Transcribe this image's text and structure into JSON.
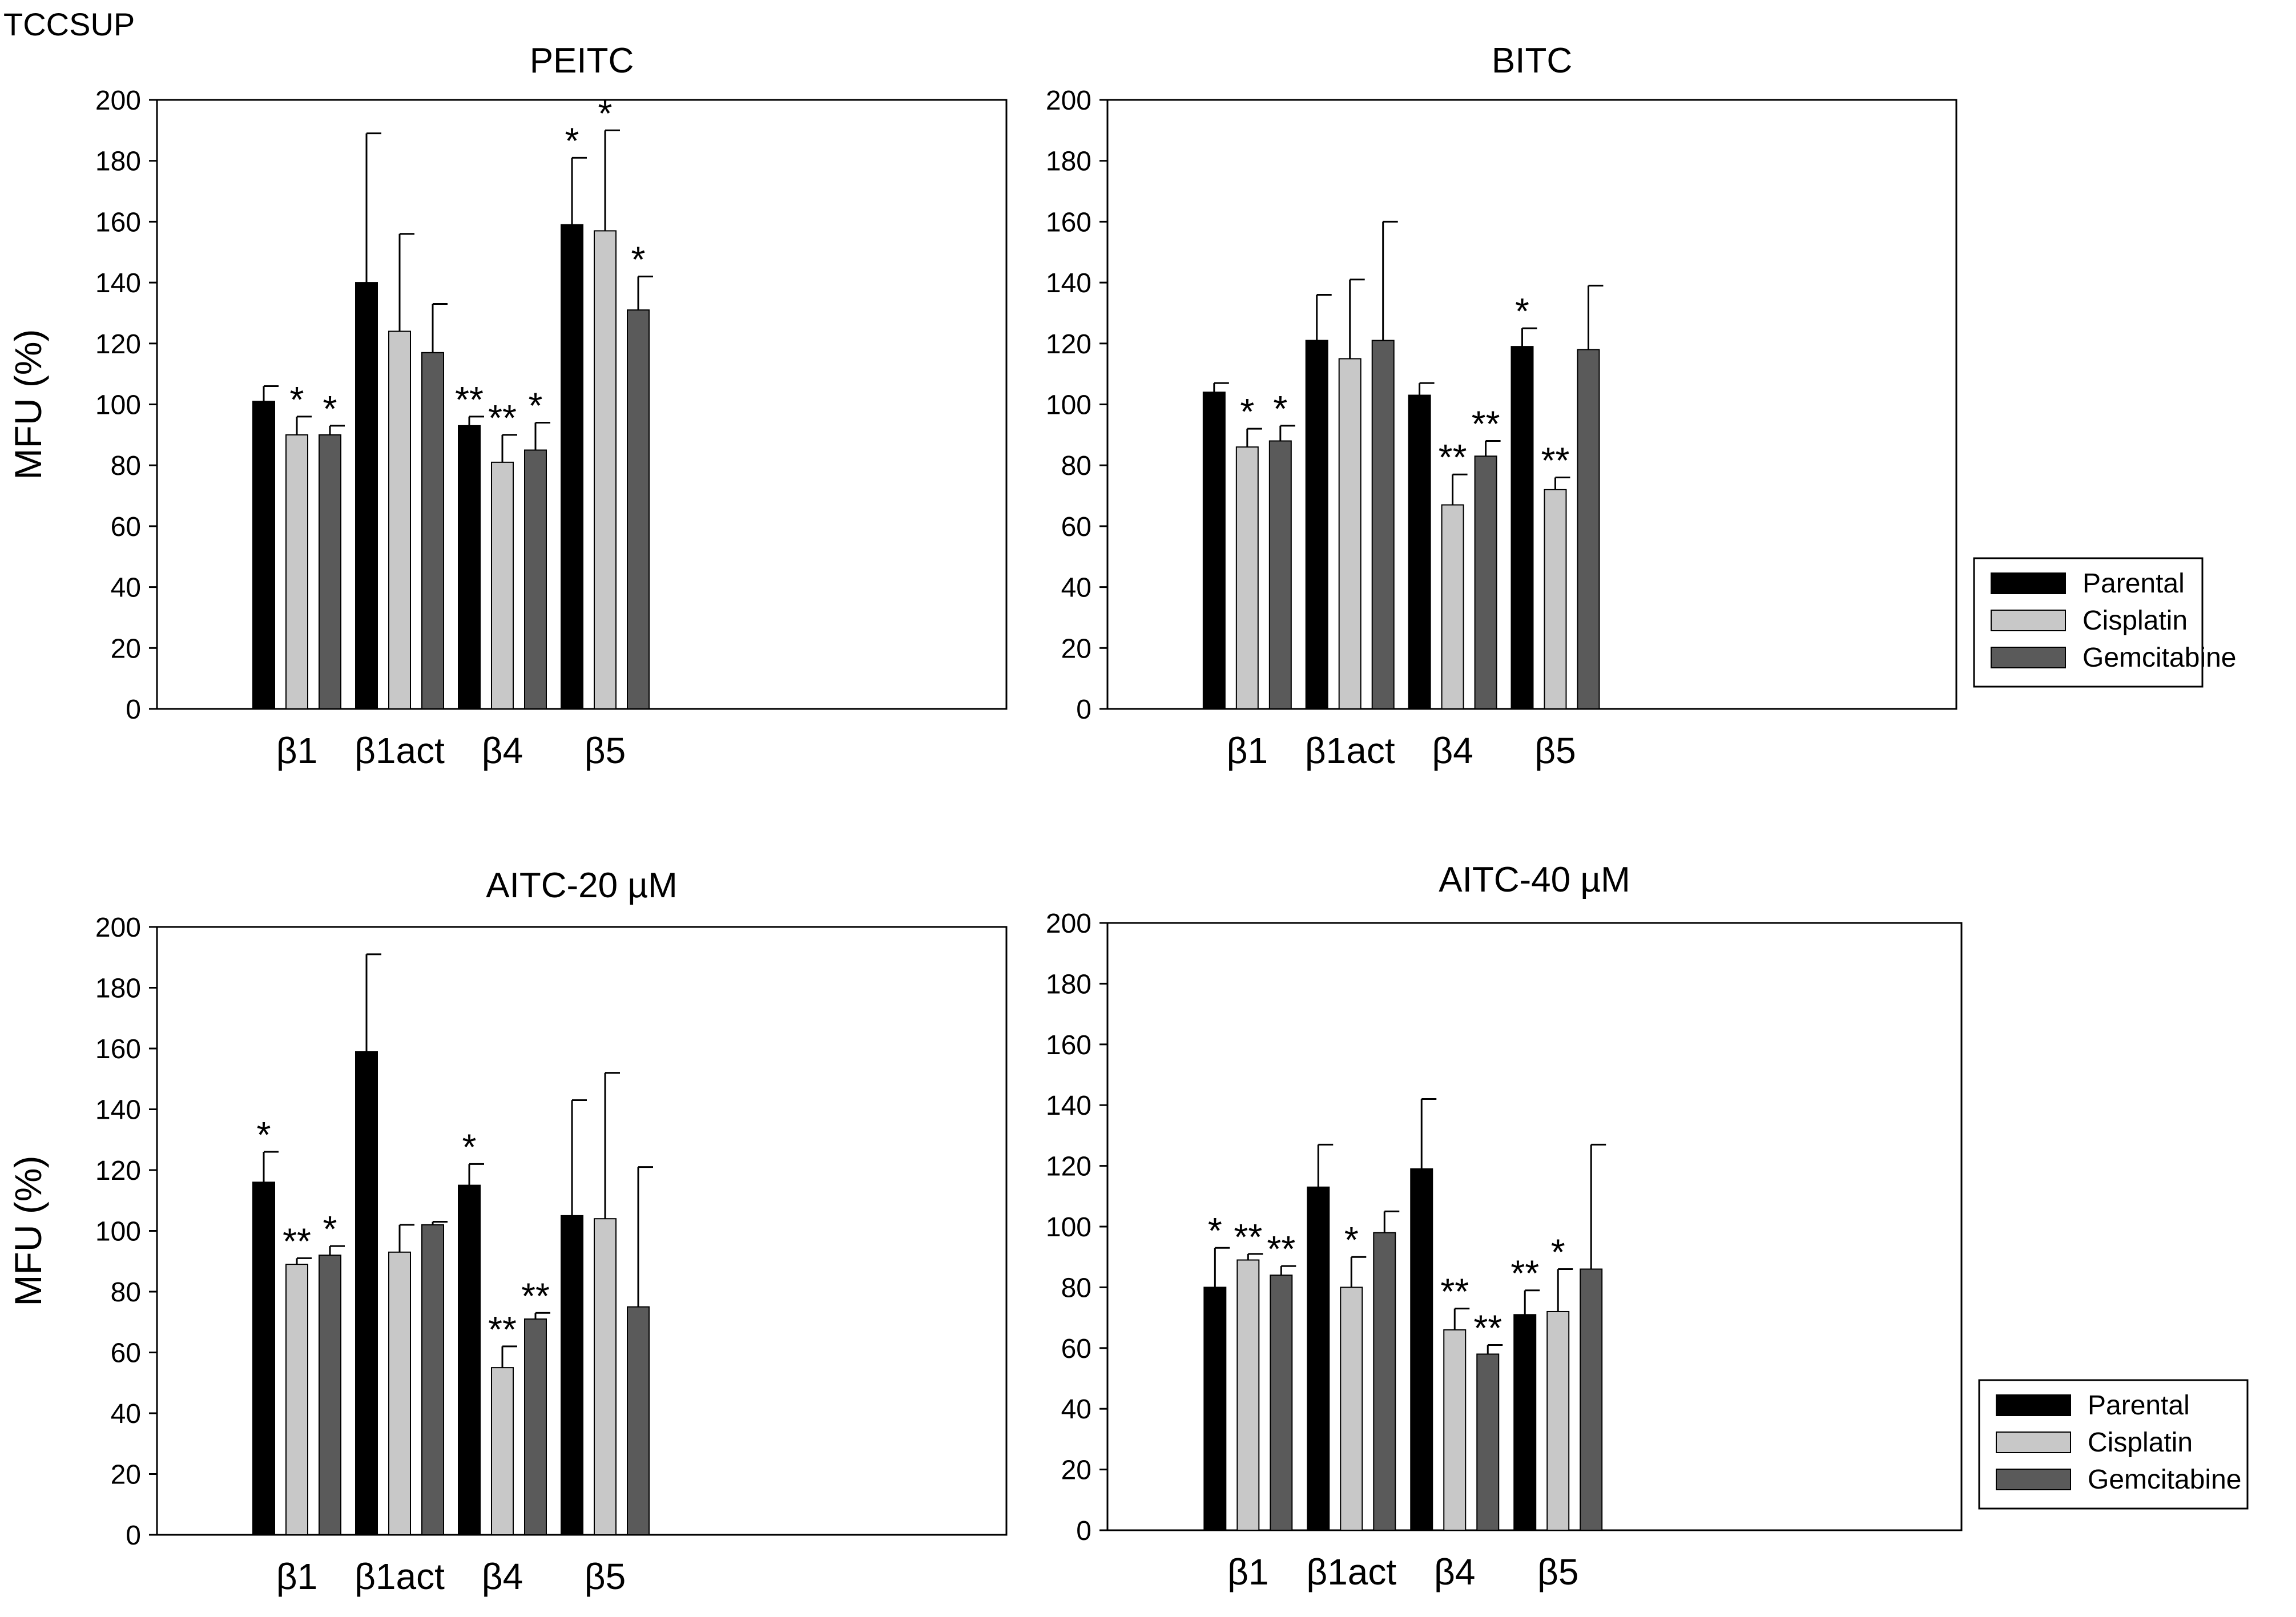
{
  "figure_label": "TCCSUP",
  "legend": {
    "entries": [
      {
        "name": "Parental",
        "color": "#000000"
      },
      {
        "name": "Cisplatin",
        "color": "#c8c8c8"
      },
      {
        "name": "Gemcitabine",
        "color": "#5a5a5a"
      }
    ]
  },
  "chart_data": [
    {
      "type": "bar",
      "title": "PEITC",
      "xlabel": "",
      "ylabel": "MFU (%)",
      "ylim": [
        0,
        200
      ],
      "yticks": [
        "0",
        "20",
        "40",
        "60",
        "80",
        "100",
        "120",
        "140",
        "160",
        "180",
        "200"
      ],
      "categories": [
        "β1",
        "β1act",
        "β4",
        "β5"
      ],
      "series": [
        {
          "name": "Parental",
          "values": [
            101,
            140,
            93,
            159
          ],
          "errors": [
            5,
            49,
            3,
            22
          ],
          "marks": [
            "",
            "",
            "**",
            "*"
          ]
        },
        {
          "name": "Cisplatin",
          "values": [
            90,
            124,
            81,
            157
          ],
          "errors": [
            6,
            32,
            9,
            33
          ],
          "marks": [
            "*",
            "",
            "**",
            "*"
          ]
        },
        {
          "name": "Gemcitabine",
          "values": [
            90,
            117,
            85,
            131
          ],
          "errors": [
            3,
            16,
            9,
            11
          ],
          "marks": [
            "*",
            "",
            "*",
            "*"
          ]
        }
      ]
    },
    {
      "type": "bar",
      "title": "BITC",
      "xlabel": "",
      "ylabel": "",
      "ylim": [
        0,
        200
      ],
      "yticks": [
        "0",
        "20",
        "40",
        "60",
        "80",
        "100",
        "120",
        "140",
        "160",
        "180",
        "200"
      ],
      "categories": [
        "β1",
        "β1act",
        "β4",
        "β5"
      ],
      "series": [
        {
          "name": "Parental",
          "values": [
            104,
            121,
            103,
            119
          ],
          "errors": [
            3,
            15,
            4,
            6
          ],
          "marks": [
            "",
            "",
            "",
            "*"
          ]
        },
        {
          "name": "Cisplatin",
          "values": [
            86,
            115,
            67,
            72
          ],
          "errors": [
            6,
            26,
            10,
            4
          ],
          "marks": [
            "*",
            "",
            "**",
            "**"
          ]
        },
        {
          "name": "Gemcitabine",
          "values": [
            88,
            121,
            83,
            118
          ],
          "errors": [
            5,
            39,
            5,
            21
          ],
          "marks": [
            "*",
            "",
            "**",
            ""
          ]
        }
      ]
    },
    {
      "type": "bar",
      "title": "AITC-20 µM",
      "xlabel": "",
      "ylabel": "MFU (%)",
      "ylim": [
        0,
        200
      ],
      "yticks": [
        "0",
        "20",
        "40",
        "60",
        "80",
        "100",
        "120",
        "140",
        "160",
        "180",
        "200"
      ],
      "categories": [
        "β1",
        "β1act",
        "β4",
        "β5"
      ],
      "series": [
        {
          "name": "Parental",
          "values": [
            116,
            159,
            115,
            105
          ],
          "errors": [
            10,
            32,
            7,
            38
          ],
          "marks": [
            "*",
            "",
            "*",
            ""
          ]
        },
        {
          "name": "Cisplatin",
          "values": [
            89,
            93,
            55,
            104
          ],
          "errors": [
            2,
            9,
            7,
            48
          ],
          "marks": [
            "**",
            "",
            "**",
            ""
          ]
        },
        {
          "name": "Gemcitabine",
          "values": [
            92,
            102,
            71,
            75
          ],
          "errors": [
            3,
            1,
            2,
            46
          ],
          "marks": [
            "*",
            "",
            "**",
            ""
          ]
        }
      ]
    },
    {
      "type": "bar",
      "title": "AITC-40 µM",
      "xlabel": "",
      "ylabel": "",
      "ylim": [
        0,
        200
      ],
      "yticks": [
        "0",
        "20",
        "40",
        "60",
        "80",
        "100",
        "120",
        "140",
        "160",
        "180",
        "200"
      ],
      "categories": [
        "β1",
        "β1act",
        "β4",
        "β5"
      ],
      "series": [
        {
          "name": "Parental",
          "values": [
            80,
            113,
            119,
            71
          ],
          "errors": [
            13,
            14,
            23,
            8
          ],
          "marks": [
            "*",
            "",
            "",
            "**"
          ]
        },
        {
          "name": "Cisplatin",
          "values": [
            89,
            80,
            66,
            72
          ],
          "errors": [
            2,
            10,
            7,
            14
          ],
          "marks": [
            "**",
            "*",
            "**",
            "*"
          ]
        },
        {
          "name": "Gemcitabine",
          "values": [
            84,
            98,
            58,
            86
          ],
          "errors": [
            3,
            7,
            3,
            41
          ],
          "marks": [
            "**",
            "",
            "**",
            ""
          ]
        }
      ]
    }
  ]
}
